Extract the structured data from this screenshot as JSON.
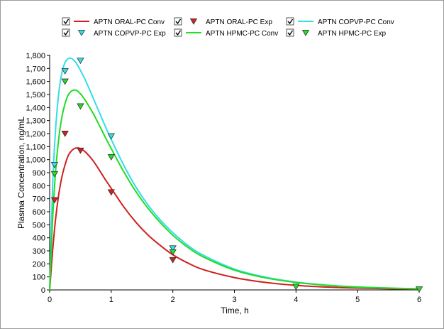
{
  "chart_data": {
    "type": "line",
    "title": "",
    "xlabel": "Time, h",
    "ylabel": "Plasma Concentration, ng/mL",
    "xlim": [
      0,
      6
    ],
    "ylim": [
      0,
      1800
    ],
    "xticks": [
      "0",
      "1",
      "2",
      "3",
      "4",
      "5",
      "6"
    ],
    "yticks": [
      "0",
      "100",
      "200",
      "300",
      "400",
      "500",
      "600",
      "700",
      "800",
      "900",
      "1,000",
      "1,100",
      "1,200",
      "1,300",
      "1,400",
      "1,500",
      "1,600",
      "1,700",
      "1,800"
    ],
    "grid": false,
    "legend_position": "top",
    "series": [
      {
        "name": "APTN ORAL-PC Conv",
        "kind": "line",
        "color": "#d02020",
        "x": [
          0,
          0.05,
          0.1,
          0.15,
          0.2,
          0.25,
          0.3,
          0.35,
          0.4,
          0.45,
          0.5,
          0.55,
          0.6,
          0.7,
          0.8,
          0.9,
          1.0,
          1.2,
          1.4,
          1.6,
          1.8,
          2.0,
          2.25,
          2.5,
          3.0,
          3.5,
          4.0,
          4.5,
          5.0,
          5.5,
          6.0
        ],
        "y": [
          0,
          310,
          560,
          740,
          870,
          960,
          1030,
          1065,
          1085,
          1090,
          1085,
          1070,
          1050,
          995,
          925,
          850,
          780,
          640,
          520,
          420,
          340,
          270,
          205,
          155,
          95,
          58,
          35,
          22,
          14,
          9,
          6
        ]
      },
      {
        "name": "APTN ORAL-PC Exp",
        "kind": "marker",
        "color": "#d02020",
        "x": [
          0.08,
          0.25,
          0.5,
          1.0,
          2.0
        ],
        "y": [
          690,
          1200,
          1070,
          750,
          230
        ]
      },
      {
        "name": "APTN COPVP-PC Conv",
        "kind": "line",
        "color": "#33dde8",
        "x": [
          0,
          0.05,
          0.1,
          0.15,
          0.2,
          0.25,
          0.3,
          0.35,
          0.4,
          0.45,
          0.5,
          0.55,
          0.6,
          0.7,
          0.8,
          0.9,
          1.0,
          1.2,
          1.4,
          1.6,
          1.8,
          2.0,
          2.25,
          2.5,
          3.0,
          3.5,
          4.0,
          4.5,
          5.0,
          5.5,
          6.0
        ],
        "y": [
          0,
          820,
          1260,
          1520,
          1670,
          1745,
          1775,
          1778,
          1760,
          1728,
          1685,
          1640,
          1590,
          1480,
          1370,
          1260,
          1155,
          960,
          790,
          650,
          535,
          440,
          340,
          265,
          160,
          98,
          60,
          37,
          23,
          14,
          9
        ]
      },
      {
        "name": "APTN COPVP-PC Exp",
        "kind": "marker",
        "color": "#33dde8",
        "x": [
          0.08,
          0.25,
          0.5,
          1.0,
          2.0
        ],
        "y": [
          960,
          1680,
          1760,
          1180,
          320
        ]
      },
      {
        "name": "APTN HPMC-PC Conv",
        "kind": "line",
        "color": "#22dd22",
        "x": [
          0,
          0.05,
          0.1,
          0.15,
          0.2,
          0.25,
          0.3,
          0.35,
          0.4,
          0.45,
          0.5,
          0.55,
          0.6,
          0.7,
          0.8,
          0.9,
          1.0,
          1.2,
          1.4,
          1.6,
          1.8,
          2.0,
          2.25,
          2.5,
          3.0,
          3.5,
          4.0,
          4.5,
          5.0,
          5.5,
          6.0
        ],
        "y": [
          0,
          560,
          930,
          1170,
          1330,
          1430,
          1495,
          1525,
          1535,
          1528,
          1505,
          1475,
          1440,
          1360,
          1270,
          1175,
          1085,
          910,
          755,
          625,
          515,
          420,
          325,
          252,
          152,
          93,
          57,
          35,
          22,
          14,
          9
        ]
      },
      {
        "name": "APTN HPMC-PC Exp",
        "kind": "marker",
        "color": "#22dd22",
        "x": [
          0.08,
          0.25,
          0.5,
          1.0,
          2.0,
          4.0,
          6.0
        ],
        "y": [
          890,
          1600,
          1410,
          1020,
          290,
          25,
          5
        ]
      }
    ]
  }
}
